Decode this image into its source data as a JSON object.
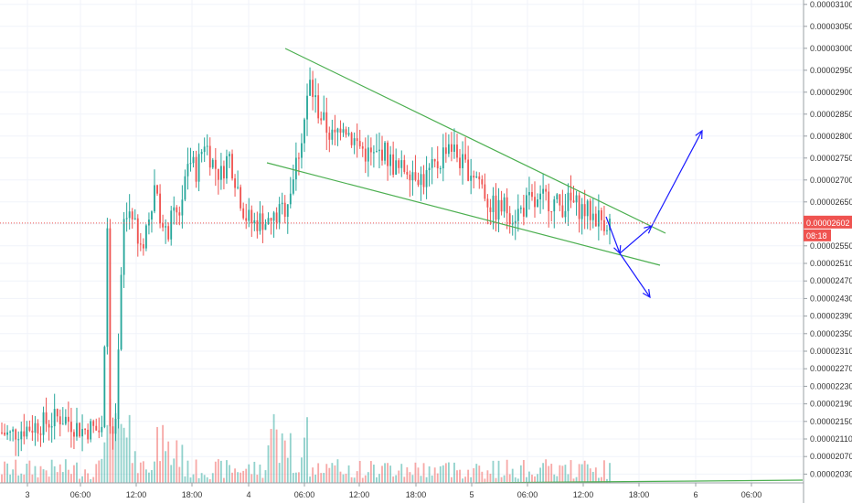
{
  "chart_data": {
    "type": "candlestick",
    "price_axis": {
      "labels": [
        "0.00003100",
        "0.00003050",
        "0.00003000",
        "0.00002950",
        "0.00002900",
        "0.00002850",
        "0.00002800",
        "0.00002750",
        "0.00002700",
        "0.00002650",
        "0.00002600",
        "0.00002550",
        "0.00002510",
        "0.00002470",
        "0.00002430",
        "0.00002390",
        "0.00002350",
        "0.00002310",
        "0.00002270",
        "0.00002230",
        "0.00002190",
        "0.00002150",
        "0.00002110",
        "0.00002070",
        "0.00002030"
      ],
      "ylim": [
        2.01e-05,
        3.11e-05
      ]
    },
    "time_axis": {
      "labels": [
        "3",
        "06:00",
        "12:00",
        "18:00",
        "4",
        "06:00",
        "12:00",
        "18:00",
        "5",
        "06:00",
        "12:00",
        "18:00",
        "6",
        "06:00"
      ]
    },
    "last_price": {
      "value": "0.00002602",
      "countdown": "08:18"
    },
    "candles_close": [
      2.125e-05,
      2.118e-05,
      2.13e-05,
      2.135e-05,
      2.14e-05,
      2.145e-05,
      2.15e-05,
      2.16e-05,
      2.155e-05,
      2.14e-05,
      2.13e-05,
      2.135e-05,
      2.128e-05,
      2.12e-05,
      2.11e-05,
      2.6e-05,
      2.64e-05,
      2.52e-05,
      2.61e-05,
      2.7e-05,
      2.56e-05,
      2.61e-05,
      2.63e-05,
      2.75e-05,
      2.72e-05,
      2.79e-05,
      2.74e-05,
      2.71e-05,
      2.76e-05,
      2.69e-05,
      2.62e-05,
      2.6e-05,
      2.61e-05,
      2.6e-05,
      2.62e-05,
      2.64e-05,
      2.71e-05,
      2.8e-05,
      2.92e-05,
      2.86e-05,
      2.82e-05,
      2.79e-05,
      2.84e-05,
      2.8e-05,
      2.78e-05,
      2.76e-05,
      2.75e-05,
      2.77e-05,
      2.74e-05,
      2.72e-05,
      2.73e-05,
      2.72e-05,
      2.7e-05,
      2.72e-05,
      2.74e-05,
      2.79e-05,
      2.76e-05,
      2.73e-05,
      2.72e-05,
      2.7e-05,
      2.65e-05,
      2.63e-05,
      2.64e-05,
      2.62e-05,
      2.63e-05,
      2.65e-05,
      2.64e-05,
      2.66e-05,
      2.65e-05,
      2.64e-05,
      2.65e-05,
      2.64e-05,
      2.63e-05,
      2.62e-05,
      2.61e-05,
      2.602e-05
    ],
    "overlays": {
      "trendlines": "falling wedge (two converging lines)",
      "projection": "dip to lower line, then breakout upward",
      "colors": {
        "up": "#26a69a",
        "down": "#ef5350",
        "wedge": "#4caf50",
        "arrows": "#1a1aff",
        "last_price": "#ef5350"
      }
    },
    "grid": true
  }
}
